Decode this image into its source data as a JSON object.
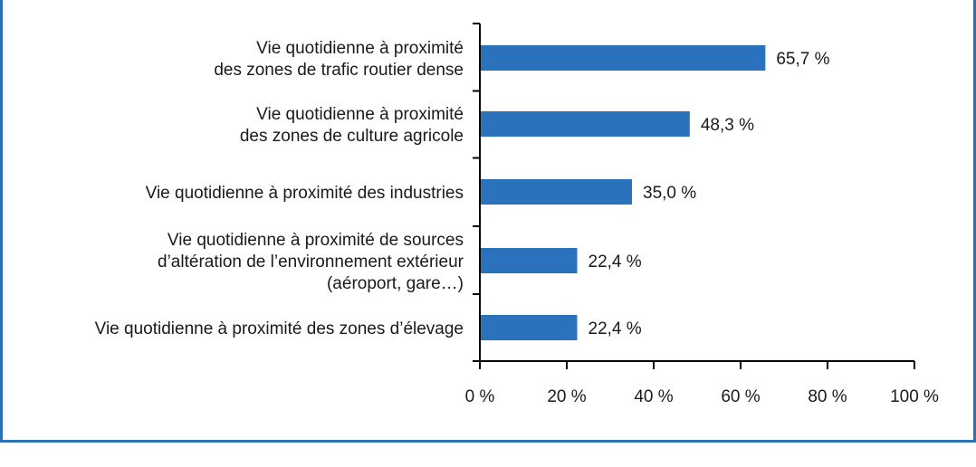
{
  "chart_data": {
    "type": "bar",
    "orientation": "horizontal",
    "title": "",
    "xlabel": "",
    "ylabel": "",
    "xlim": [
      0,
      100
    ],
    "grid": false,
    "bar_color": "#2a72bb",
    "frame_color": "#2f6fb5",
    "categories": [
      [
        "Vie quotidienne à proximité",
        "des zones de trafic routier dense"
      ],
      [
        "Vie quotidienne à proximité",
        "des zones de culture agricole"
      ],
      [
        "Vie quotidienne à proximité des industries"
      ],
      [
        "Vie quotidienne à proximité de sources",
        "d’altération de l’environnement extérieur",
        "(aéroport, gare…)"
      ],
      [
        "Vie quotidienne à proximité des zones d’élevage"
      ]
    ],
    "values": [
      65.7,
      48.3,
      35.0,
      22.4,
      22.4
    ],
    "value_labels": [
      "65,7 %",
      "48,3 %",
      "35,0 %",
      "22,4 %",
      "22,4 %"
    ],
    "ticks": [
      0,
      20,
      40,
      60,
      80,
      100
    ],
    "tick_labels": [
      "0 %",
      "20 %",
      "40 %",
      "60 %",
      "80 %",
      "100 %"
    ]
  }
}
